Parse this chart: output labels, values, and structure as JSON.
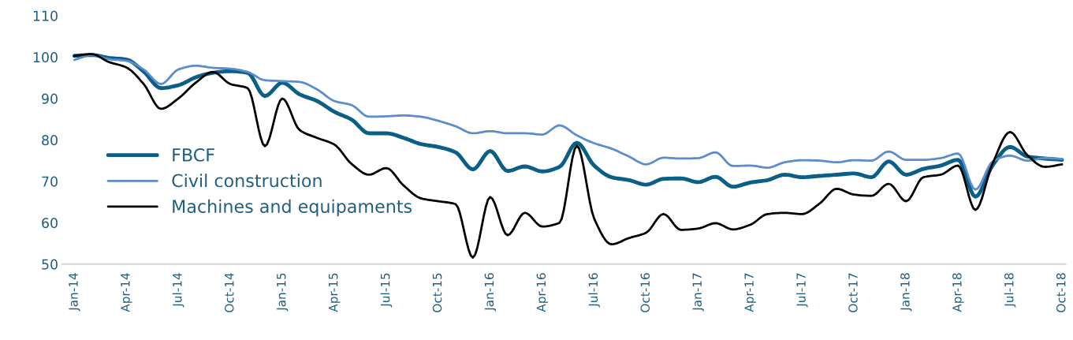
{
  "chart_data": {
    "type": "line",
    "categories": [
      "Jan-14",
      null,
      null,
      "Apr-14",
      null,
      null,
      "Jul-14",
      null,
      null,
      "Oct-14",
      null,
      null,
      "Jan-15",
      null,
      null,
      "Apr-15",
      null,
      null,
      "Jul-15",
      null,
      null,
      "Oct-15",
      null,
      null,
      "Jan-16",
      null,
      null,
      "Apr-16",
      null,
      null,
      "Jul-16",
      null,
      null,
      "Oct-16",
      null,
      null,
      "Jan-17",
      null,
      null,
      "Apr-17",
      null,
      null,
      "Jul-17",
      null,
      null,
      "Oct-17",
      null,
      null,
      "Jan-18",
      null,
      null,
      "Apr-18",
      null,
      null,
      "Jul-18",
      null,
      null,
      "Oct-18"
    ],
    "series": [
      {
        "name": "FBCF",
        "color": "#0b5f87",
        "values": [
          100.3,
          100.5,
          99.8,
          99.4,
          96.5,
          92.5,
          93.2,
          95.1,
          96.2,
          96.6,
          96.2,
          90.6,
          93.8,
          91,
          89.4,
          86.8,
          84.9,
          81.6,
          81.6,
          80.5,
          79,
          78.3,
          77,
          72.9,
          77.3,
          72.5,
          73.6,
          72.4,
          73.5,
          79.3,
          73.8,
          71,
          70.3,
          69.2,
          70.6,
          70.7,
          69.8,
          71.1,
          68.7,
          69.7,
          70.3,
          71.6,
          71,
          71.3,
          71.6,
          71.9,
          71,
          74.8,
          71.6,
          73,
          73.8,
          75.2,
          66.3,
          73.9,
          78.3,
          76,
          75.5,
          75.2
        ]
      },
      {
        "name": "Civil construction",
        "color": "#5b8ccc",
        "values": [
          99.3,
          100.5,
          99.5,
          99.1,
          97,
          93.5,
          97,
          97.9,
          97.4,
          97.2,
          96.4,
          94.4,
          94.2,
          94,
          92.2,
          89.4,
          88.4,
          85.6,
          85.7,
          85.9,
          85.6,
          84.6,
          83.3,
          81.6,
          82.1,
          81.6,
          81.6,
          81.3,
          83.5,
          81.1,
          79.2,
          77.9,
          76,
          74.1,
          75.7,
          75.5,
          75.6,
          77,
          73.7,
          73.8,
          73.3,
          74.6,
          75.1,
          75,
          74.6,
          75.1,
          75,
          77.2,
          75.2,
          75.2,
          75.6,
          76.7,
          68,
          74.8,
          76.2,
          75,
          75.6,
          75.4
        ]
      },
      {
        "name": "Machines and equipaments",
        "color": "#000000",
        "values": [
          100.3,
          100.7,
          98.8,
          97.5,
          93.5,
          87.5,
          90,
          93.8,
          96.4,
          93.5,
          92.5,
          78.5,
          90,
          82.4,
          80.5,
          78.9,
          74.2,
          71.6,
          73.2,
          69,
          65.9,
          65.2,
          64.5,
          51.6,
          66.2,
          57,
          62.4,
          59.1,
          60,
          78.6,
          61,
          54.8,
          56.3,
          57.6,
          62.1,
          58.3,
          58.6,
          59.9,
          58.4,
          59.5,
          62.1,
          62.4,
          62.1,
          64.6,
          68.2,
          66.8,
          66.5,
          69.4,
          65.2,
          71,
          71.6,
          73.8,
          63.1,
          74.4,
          81.9,
          76.3,
          73.5,
          74.1
        ]
      }
    ],
    "ylim": [
      50,
      110
    ],
    "yticks": [
      50,
      60,
      70,
      80,
      90,
      100,
      110
    ],
    "grid": false,
    "legend": "left",
    "marker": "none",
    "line_style": "solid"
  }
}
